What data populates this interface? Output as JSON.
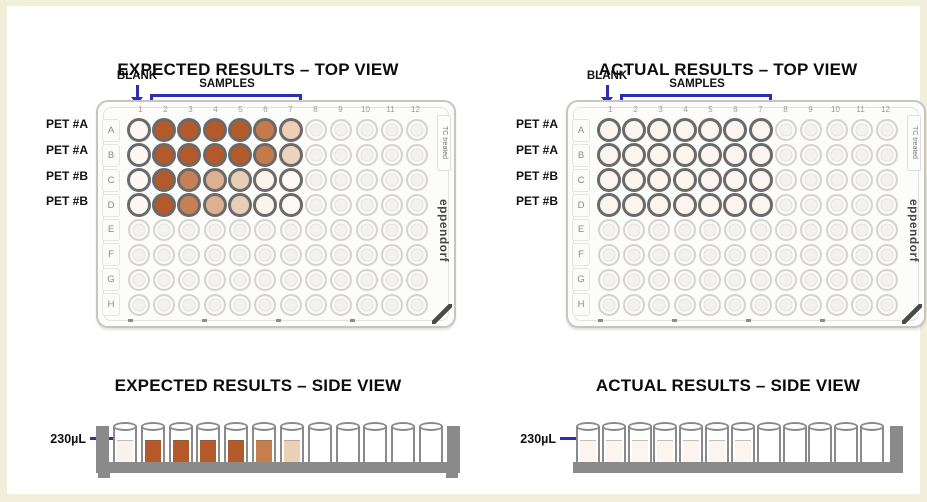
{
  "colors": {
    "annotation_blue": "#2b2fb5",
    "tray_gray": "#8a8a8a",
    "frame_border": "#f1eeda",
    "filled_well_ring": "#6a6a6a",
    "empty_well_ring": "#d4d3d0"
  },
  "plate": {
    "row_labels": [
      "A",
      "B",
      "C",
      "D",
      "E",
      "F",
      "G",
      "H"
    ],
    "column_labels": [
      "1",
      "2",
      "3",
      "4",
      "5",
      "6",
      "7",
      "8",
      "9",
      "10",
      "11",
      "12"
    ],
    "tc_label": "TC treated",
    "brand_label": "eppendorf"
  },
  "top_left": {
    "title": "EXPECTED RESULTS – TOP VIEW",
    "blank_label": "BLANK",
    "samples_label": "SAMPLES",
    "row_annotations": [
      "PET #A",
      "PET #A",
      "PET #B",
      "PET #B"
    ]
  },
  "top_right": {
    "title": "ACTUAL RESULTS – TOP VIEW",
    "blank_label": "BLANK",
    "samples_label": "SAMPLES",
    "row_annotations": [
      "PET #A",
      "PET #A",
      "PET #B",
      "PET #B"
    ]
  },
  "bottom_left": {
    "title": "EXPECTED RESULTS – SIDE VIEW",
    "volume_label": "230µL",
    "cylinder_liquids": [
      "#fbf2eb",
      "#b4592a",
      "#b4592a",
      "#b4592a",
      "#b4592a",
      "#c57f4f",
      "#ead0b5",
      null,
      null,
      null,
      null,
      null
    ]
  },
  "bottom_right": {
    "title": "ACTUAL RESULTS – SIDE VIEW",
    "volume_label": "230µL",
    "cylinder_liquids": [
      "#fbf4ef",
      "#fbf4ef",
      "#fbf4ef",
      "#fbf4ef",
      "#fbf4ef",
      "#fbf4ef",
      "#fbf4ef",
      null,
      null,
      null,
      null,
      null
    ]
  },
  "well_matrix": {
    "expected": [
      [
        "#fdf8f4",
        "#b4592a",
        "#b4592a",
        "#b4592a",
        "#b4592a",
        "#c57a4c",
        "#eccfb4"
      ],
      [
        "#fdf8f4",
        "#b4592a",
        "#b4592a",
        "#b4592a",
        "#b4592a",
        "#c57a4c",
        "#ecd3bd"
      ],
      [
        "#fdf8f4",
        "#b4592a",
        "#c78056",
        "#ddb092",
        "#e9ceb7",
        "#fbf4ed",
        "#fdf9f6"
      ],
      [
        "#fdf8f4",
        "#b4592a",
        "#c78056",
        "#ddb092",
        "#e9ceb7",
        "#fbf4ed",
        "#fdf9f6"
      ]
    ],
    "actual": [
      [
        "#fbf4ef",
        "#fbf4ef",
        "#fbf4ef",
        "#fbf4ef",
        "#fbf4ef",
        "#fbf4ef",
        "#fbf4ef"
      ],
      [
        "#fbf4ef",
        "#fbf4ef",
        "#fbf4ef",
        "#fbf4ef",
        "#fbf4ef",
        "#fbf4ef",
        "#fbf4ef"
      ],
      [
        "#fbf4ef",
        "#fbf4ef",
        "#fbf4ef",
        "#fbf4ef",
        "#fbf4ef",
        "#fbf4ef",
        "#fbf4ef"
      ],
      [
        "#fbf4ef",
        "#fbf4ef",
        "#fbf4ef",
        "#fbf4ef",
        "#fbf4ef",
        "#fbf4ef",
        "#fbf4ef"
      ]
    ]
  }
}
